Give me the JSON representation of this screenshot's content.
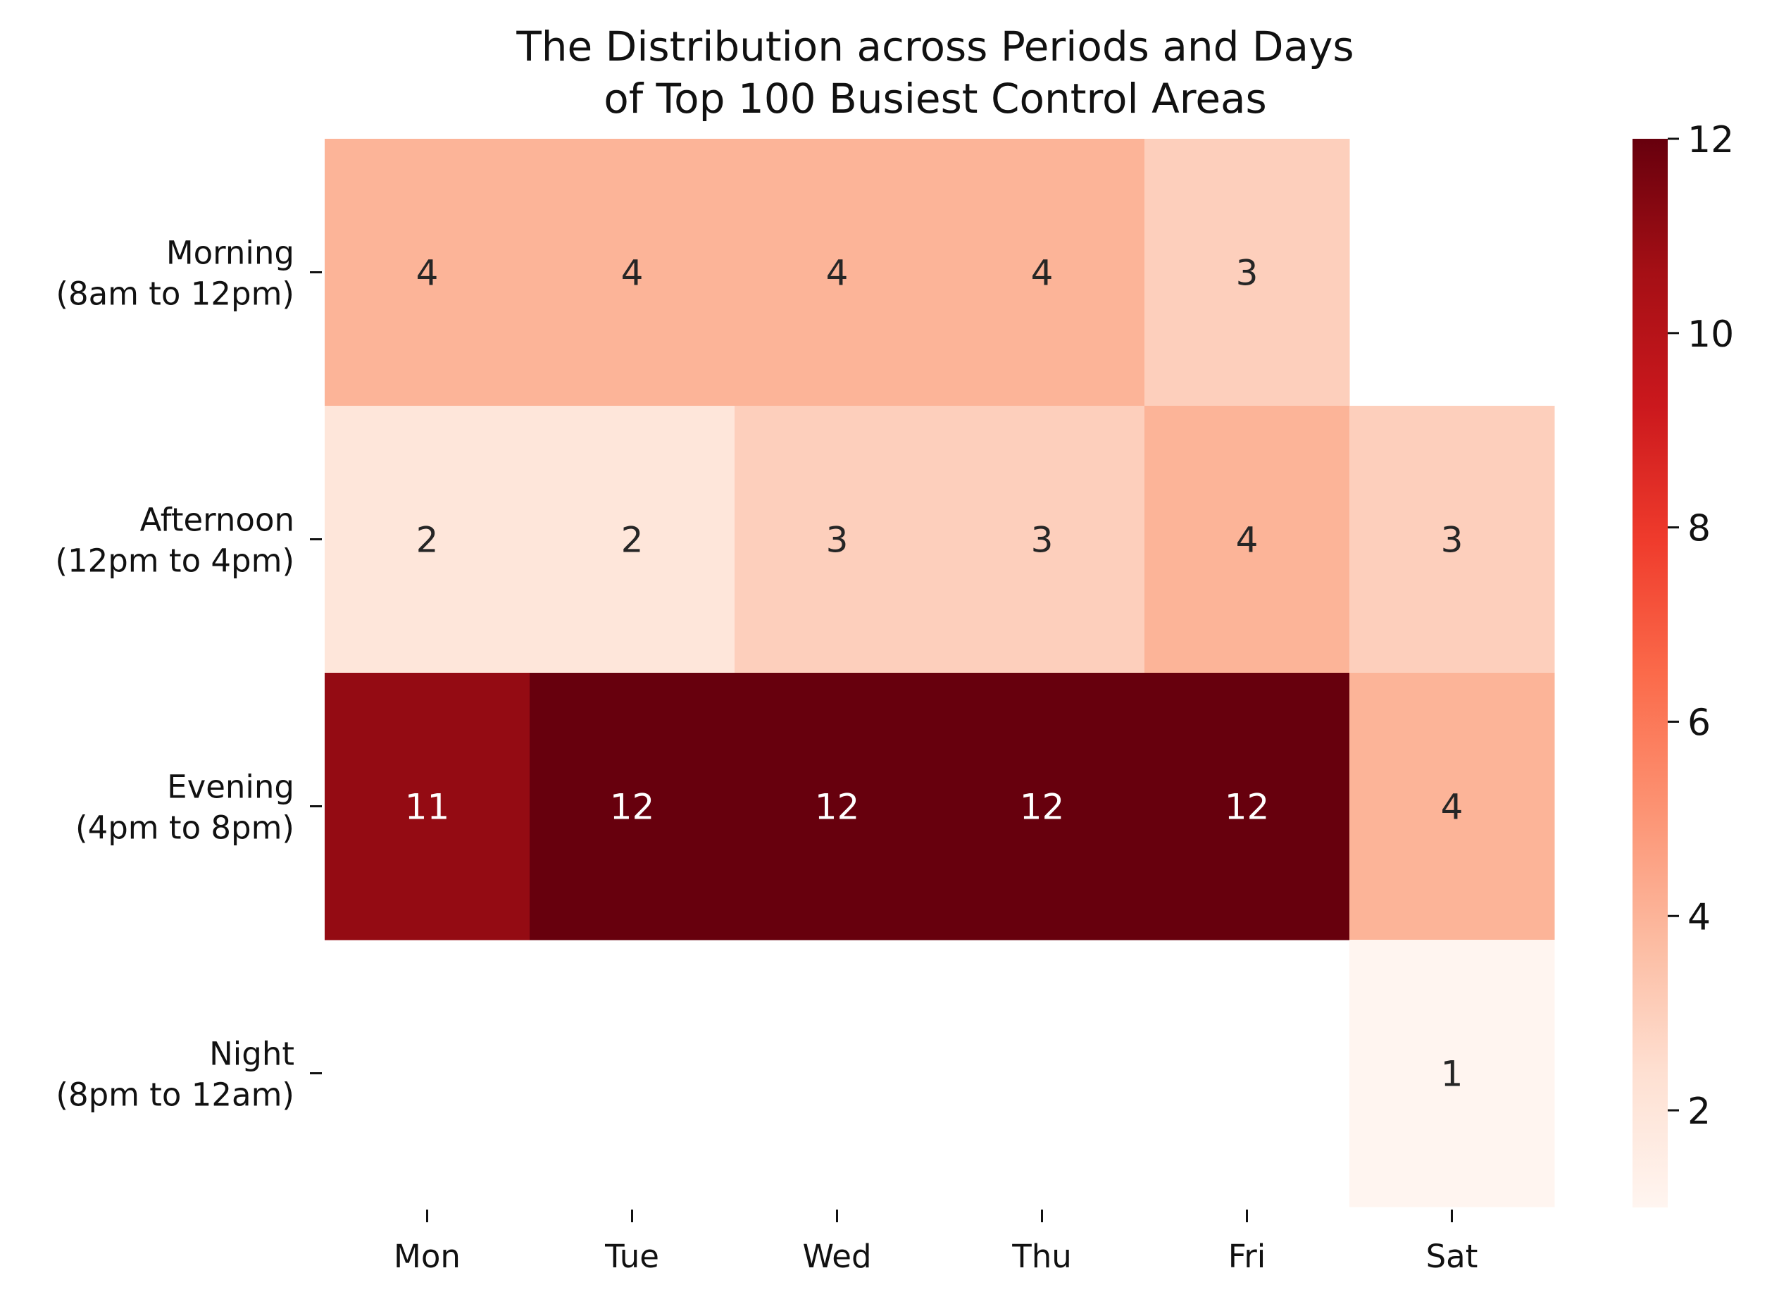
{
  "chart_data": {
    "type": "heatmap",
    "title_lines": [
      "The Distribution across Periods and Days",
      "of Top 100 Busiest Control Areas"
    ],
    "x_categories": [
      "Mon",
      "Tue",
      "Wed",
      "Thu",
      "Fri",
      "Sat"
    ],
    "y_categories": [
      [
        "Morning",
        "(8am to 12pm)"
      ],
      [
        "Afternoon",
        "(12pm to 4pm)"
      ],
      [
        "Evening",
        "(4pm to 8pm)"
      ],
      [
        "Night",
        "(8pm to 12am)"
      ]
    ],
    "values": [
      [
        4,
        4,
        4,
        4,
        3,
        null
      ],
      [
        2,
        2,
        3,
        3,
        4,
        3
      ],
      [
        11,
        12,
        12,
        12,
        12,
        4
      ],
      [
        null,
        null,
        null,
        null,
        null,
        1
      ]
    ],
    "colormap": "Reds",
    "colorbar": {
      "range": [
        1,
        12
      ],
      "ticks": [
        2,
        4,
        6,
        8,
        10,
        12
      ],
      "colors": [
        "#fff5f0",
        "#fee0d2",
        "#fcbba1",
        "#fc9272",
        "#fb6a4a",
        "#ef3b2c",
        "#cb181d",
        "#a50f15",
        "#67000d"
      ]
    }
  }
}
